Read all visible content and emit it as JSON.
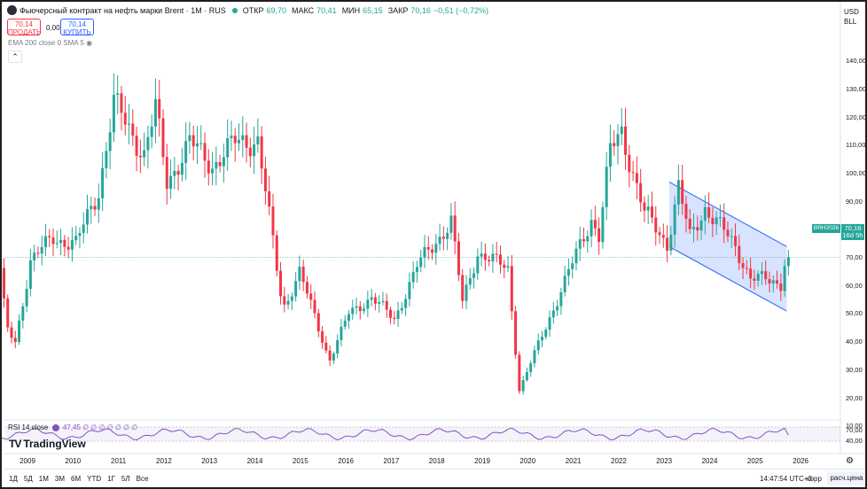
{
  "legend": {
    "title": "Фьючерсный контракт на нефть марки Brent · 1M · RUS",
    "open_key": "ОТКР",
    "open": "69,70",
    "high_key": "МАКС",
    "high": "70,41",
    "low_key": "МИН",
    "low": "65,15",
    "close_key": "ЗАКР",
    "close": "70,16",
    "change": "−0,51 (−0,72%)"
  },
  "trade": {
    "sell_price": "70,14",
    "sell_label": "ПРОДАТЬ",
    "spread": "0,00",
    "buy_price": "70,14",
    "buy_label": "КУПИТЬ"
  },
  "indicators_legend": "EMA 200 close 0 SMA 5",
  "currency": {
    "code": "USD",
    "unit": "BLL"
  },
  "price_tag": {
    "symbol": "BRH2026",
    "price": "70,16",
    "countdown": "16d 5h"
  },
  "rsi": {
    "label": "RSI 14 close",
    "value": "47,45",
    "rest": "∅ ∅ ∅ ∅ ∅ ∅ ∅",
    "ylabels": [
      "70,00",
      "40,00"
    ]
  },
  "brand": "TradingView",
  "bottom": {
    "ranges": [
      "1Д",
      "5Д",
      "1М",
      "3М",
      "6М",
      "YTD",
      "1Г",
      "5Л",
      "Все"
    ],
    "clock": "14:47:54 UTC+3",
    "adjust": "корр",
    "calc": "расч.цена"
  },
  "colors": {
    "up": "#26a69a",
    "down": "#f23645",
    "channel": "#2962ff",
    "rsi": "#7e57c2"
  },
  "chart_data": {
    "type": "candlestick",
    "title": "Фьючерсный контракт на нефть марки Brent · 1M · RUS",
    "ylim": [
      10,
      140
    ],
    "yticks": [
      "140,00",
      "130,00",
      "120,00",
      "110,00",
      "100,00",
      "90,00",
      "80,00",
      "70,00",
      "60,00",
      "50,00",
      "40,00",
      "30,00",
      "20,00",
      "10,00"
    ],
    "x_labels": [
      "2009",
      "2010",
      "2011",
      "2012",
      "2013",
      "2014",
      "2015",
      "2016",
      "2017",
      "2018",
      "2019",
      "2020",
      "2021",
      "2022",
      "2023",
      "2024",
      "2025",
      "2026"
    ],
    "x_range": [
      "2008-09",
      "2026-02"
    ],
    "last_close": 70.16,
    "annual_closes": [
      {
        "date": "2008-09",
        "close": 85
      },
      {
        "date": "2008-10",
        "close": 66
      },
      {
        "date": "2008-11",
        "close": 53
      },
      {
        "date": "2008-12",
        "close": 44
      },
      {
        "date": "2009-02",
        "close": 40
      },
      {
        "date": "2009-06",
        "close": 69
      },
      {
        "date": "2009-12",
        "close": 77
      },
      {
        "date": "2010-06",
        "close": 75
      },
      {
        "date": "2010-12",
        "close": 94
      },
      {
        "date": "2011-04",
        "close": 125
      },
      {
        "date": "2011-12",
        "close": 107
      },
      {
        "date": "2012-03",
        "close": 123
      },
      {
        "date": "2012-06",
        "close": 97
      },
      {
        "date": "2012-12",
        "close": 111
      },
      {
        "date": "2013-06",
        "close": 103
      },
      {
        "date": "2013-12",
        "close": 111
      },
      {
        "date": "2014-06",
        "close": 112
      },
      {
        "date": "2014-12",
        "close": 57
      },
      {
        "date": "2015-01",
        "close": 53
      },
      {
        "date": "2015-05",
        "close": 65
      },
      {
        "date": "2015-12",
        "close": 37
      },
      {
        "date": "2016-01",
        "close": 34
      },
      {
        "date": "2016-06",
        "close": 50
      },
      {
        "date": "2016-12",
        "close": 56
      },
      {
        "date": "2017-06",
        "close": 48
      },
      {
        "date": "2017-12",
        "close": 67
      },
      {
        "date": "2018-09",
        "close": 83
      },
      {
        "date": "2018-12",
        "close": 54
      },
      {
        "date": "2019-04",
        "close": 72
      },
      {
        "date": "2019-12",
        "close": 66
      },
      {
        "date": "2020-03",
        "close": 23
      },
      {
        "date": "2020-04",
        "close": 26
      },
      {
        "date": "2020-12",
        "close": 52
      },
      {
        "date": "2021-10",
        "close": 84
      },
      {
        "date": "2021-12",
        "close": 78
      },
      {
        "date": "2022-03",
        "close": 108
      },
      {
        "date": "2022-06",
        "close": 115
      },
      {
        "date": "2022-12",
        "close": 86
      },
      {
        "date": "2023-06",
        "close": 75
      },
      {
        "date": "2023-09",
        "close": 95
      },
      {
        "date": "2023-12",
        "close": 77
      },
      {
        "date": "2024-04",
        "close": 88
      },
      {
        "date": "2024-12",
        "close": 74
      },
      {
        "date": "2025-04",
        "close": 63
      },
      {
        "date": "2025-12",
        "close": 61
      },
      {
        "date": "2026-01",
        "close": 69
      },
      {
        "date": "2026-02",
        "close": 70.16
      }
    ],
    "channel": {
      "upper": [
        {
          "date": "2023-07",
          "price": 97
        },
        {
          "date": "2026-02",
          "price": 74
        }
      ],
      "lower": [
        {
          "date": "2023-07",
          "price": 74
        },
        {
          "date": "2026-02",
          "price": 51
        }
      ]
    },
    "rsi_panel": {
      "label": "RSI 14 close",
      "last": 47.45,
      "levels": [
        70,
        40
      ]
    }
  }
}
